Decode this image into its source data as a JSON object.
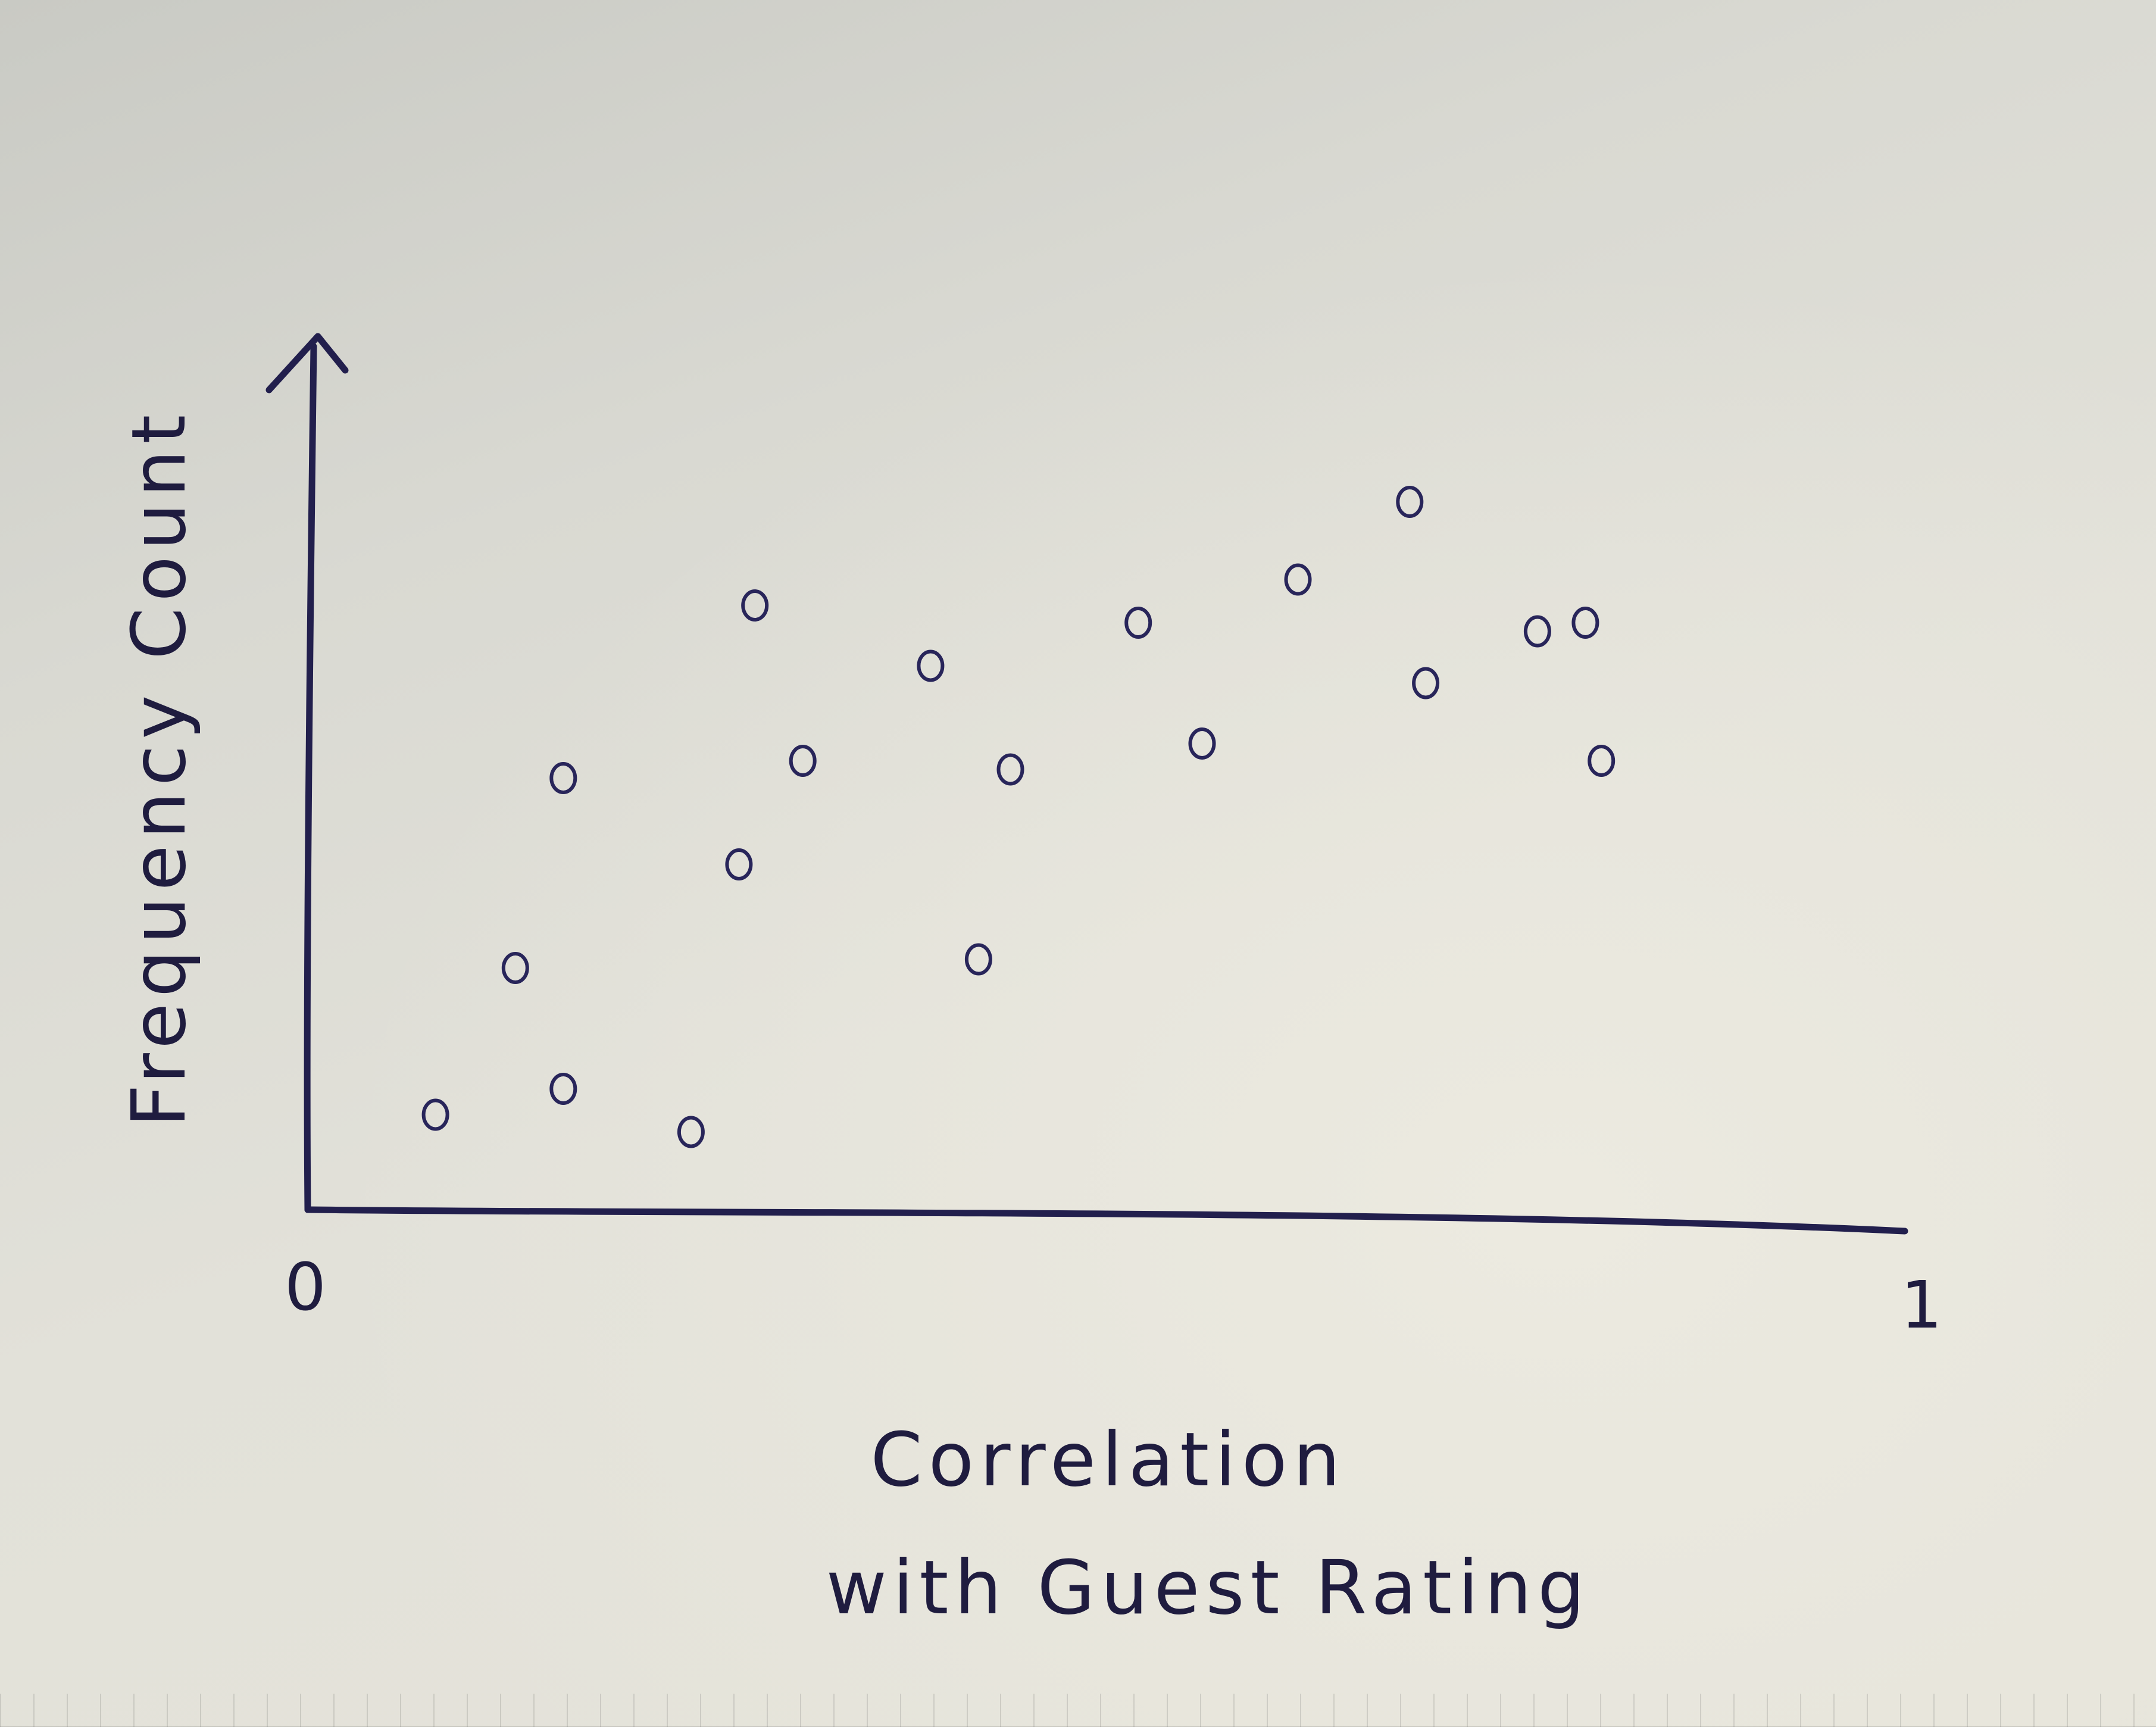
{
  "chart_data": {
    "type": "scatter",
    "xlabel": [
      "Correlation",
      "with Guest Rating"
    ],
    "ylabel": "Frequency Count",
    "tick_labels": [
      "0",
      "1"
    ],
    "xlim": [
      0,
      1
    ],
    "ylim": [
      0,
      1
    ],
    "grid": false,
    "series": [
      {
        "x": [
          0.08,
          0.13,
          0.16,
          0.16,
          0.24,
          0.27,
          0.28,
          0.31,
          0.39,
          0.42,
          0.44,
          0.52,
          0.56,
          0.62,
          0.69,
          0.7,
          0.77,
          0.8,
          0.81
        ],
        "y": [
          0.11,
          0.28,
          0.14,
          0.5,
          0.09,
          0.4,
          0.7,
          0.52,
          0.63,
          0.29,
          0.51,
          0.68,
          0.54,
          0.73,
          0.82,
          0.61,
          0.67,
          0.68,
          0.52
        ]
      }
    ],
    "colors": {
      "ink": "#221f4d",
      "paper": "#e3e2d9"
    }
  }
}
